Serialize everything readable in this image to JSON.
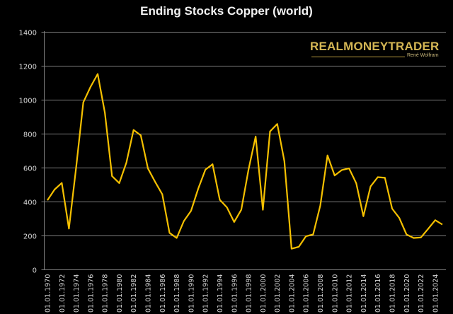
{
  "chart_data": {
    "type": "line",
    "title": "Ending Stocks Copper (world)",
    "xlabel": "",
    "ylabel": "",
    "ylim": [
      0,
      1400
    ],
    "yticks": [
      0,
      200,
      400,
      600,
      800,
      1000,
      1200,
      1400
    ],
    "grid": true,
    "legend": null,
    "x_tick_labels": [
      "01.01.1970",
      "01.01.1972",
      "01.01.1974",
      "01.01.1976",
      "01.01.1978",
      "01.01.1980",
      "01.01.1982",
      "01.01.1984",
      "01.01.1986",
      "01.01.1988",
      "01.01.1990",
      "01.01.1992",
      "01.01.1994",
      "01.01.1996",
      "01.01.1998",
      "01.01.2000",
      "01.01.2002",
      "01.01.2004",
      "01.01.2006",
      "01.01.2008",
      "01.01.2010",
      "01.01.2012",
      "01.01.2014",
      "01.01.2016",
      "01.01.2018",
      "01.01.2020",
      "01.01.2022",
      "01.01.2024"
    ],
    "x": [
      1970,
      1971,
      1972,
      1973,
      1974,
      1975,
      1976,
      1977,
      1978,
      1979,
      1980,
      1981,
      1982,
      1983,
      1984,
      1985,
      1986,
      1987,
      1988,
      1989,
      1990,
      1991,
      1992,
      1993,
      1994,
      1995,
      1996,
      1997,
      1998,
      1999,
      2000,
      2001,
      2002,
      2003,
      2004,
      2005,
      2006,
      2007,
      2008,
      2009,
      2010,
      2011,
      2012,
      2013,
      2014,
      2015,
      2016,
      2017,
      2018,
      2019,
      2020,
      2021,
      2022,
      2023,
      2024,
      2025
    ],
    "series": [
      {
        "name": "Ending Stocks Copper (world)",
        "color": "#F5C000",
        "values": [
          407,
          470,
          509,
          240,
          601,
          983,
          1074,
          1150,
          921,
          549,
          508,
          629,
          821,
          789,
          594,
          515,
          442,
          215,
          185,
          285,
          345,
          476,
          587,
          619,
          410,
          365,
          279,
          351,
          587,
          782,
          351,
          812,
          856,
          636,
          122,
          133,
          195,
          206,
          376,
          671,
          553,
          585,
          595,
          507,
          313,
          488,
          543,
          539,
          358,
          303,
          206,
          185,
          188,
          238,
          290,
          264
        ]
      }
    ]
  },
  "watermark": {
    "brand": "REALMONEYTRADER",
    "author": "René Wolfram"
  },
  "colors": {
    "background": "#000000",
    "line": "#F5C000",
    "grid": "#7f7f7f",
    "text": "#d9d9d9"
  }
}
